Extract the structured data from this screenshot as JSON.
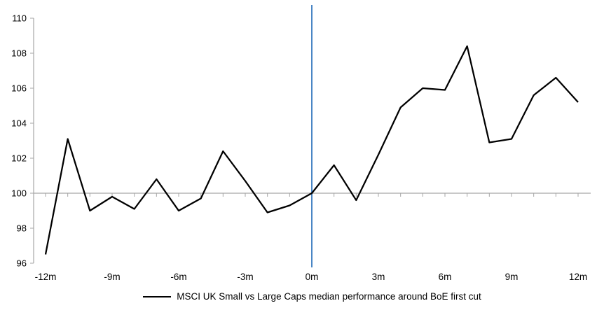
{
  "chart_data": {
    "type": "line",
    "title": "",
    "xlabel": "",
    "ylabel": "",
    "x_months": [
      -12,
      -11,
      -10,
      -9,
      -8,
      -7,
      -6,
      -5,
      -4,
      -3,
      -2,
      -1,
      0,
      1,
      2,
      3,
      4,
      5,
      6,
      7,
      8,
      9,
      10,
      11,
      12
    ],
    "series": [
      {
        "name": "MSCI UK Small vs Large Caps median performance around BoE first cut",
        "color": "#000000",
        "values": [
          96.5,
          103.1,
          99.0,
          99.8,
          99.1,
          100.8,
          99.0,
          99.7,
          102.4,
          100.7,
          98.9,
          99.3,
          100.0,
          101.6,
          99.6,
          102.2,
          104.9,
          106.0,
          105.9,
          108.4,
          102.9,
          103.1,
          105.6,
          106.6,
          105.2
        ]
      }
    ],
    "xlim": [
      -12,
      12
    ],
    "ylim": [
      96,
      110
    ],
    "y_ticks": [
      96,
      98,
      100,
      102,
      104,
      106,
      108,
      110
    ],
    "x_tick_months": [
      -12,
      -9,
      -6,
      -3,
      0,
      3,
      6,
      9,
      12
    ],
    "x_tick_labels": [
      "-12m",
      "-9m",
      "-6m",
      "-3m",
      "0m",
      "3m",
      "6m",
      "9m",
      "12m"
    ],
    "minor_tick_every_month": true,
    "baseline_value": 100,
    "event_line_month": 0,
    "grid": "off",
    "legend_position": "bottom-center",
    "colors": {
      "series": "#000000",
      "axis": "#A6A6A6",
      "baseline": "#A6A6A6",
      "event_line": "#4A86C5",
      "tick_label": "#000000"
    }
  },
  "legend": {
    "label": "MSCI UK Small vs Large Caps median performance around BoE first cut"
  }
}
